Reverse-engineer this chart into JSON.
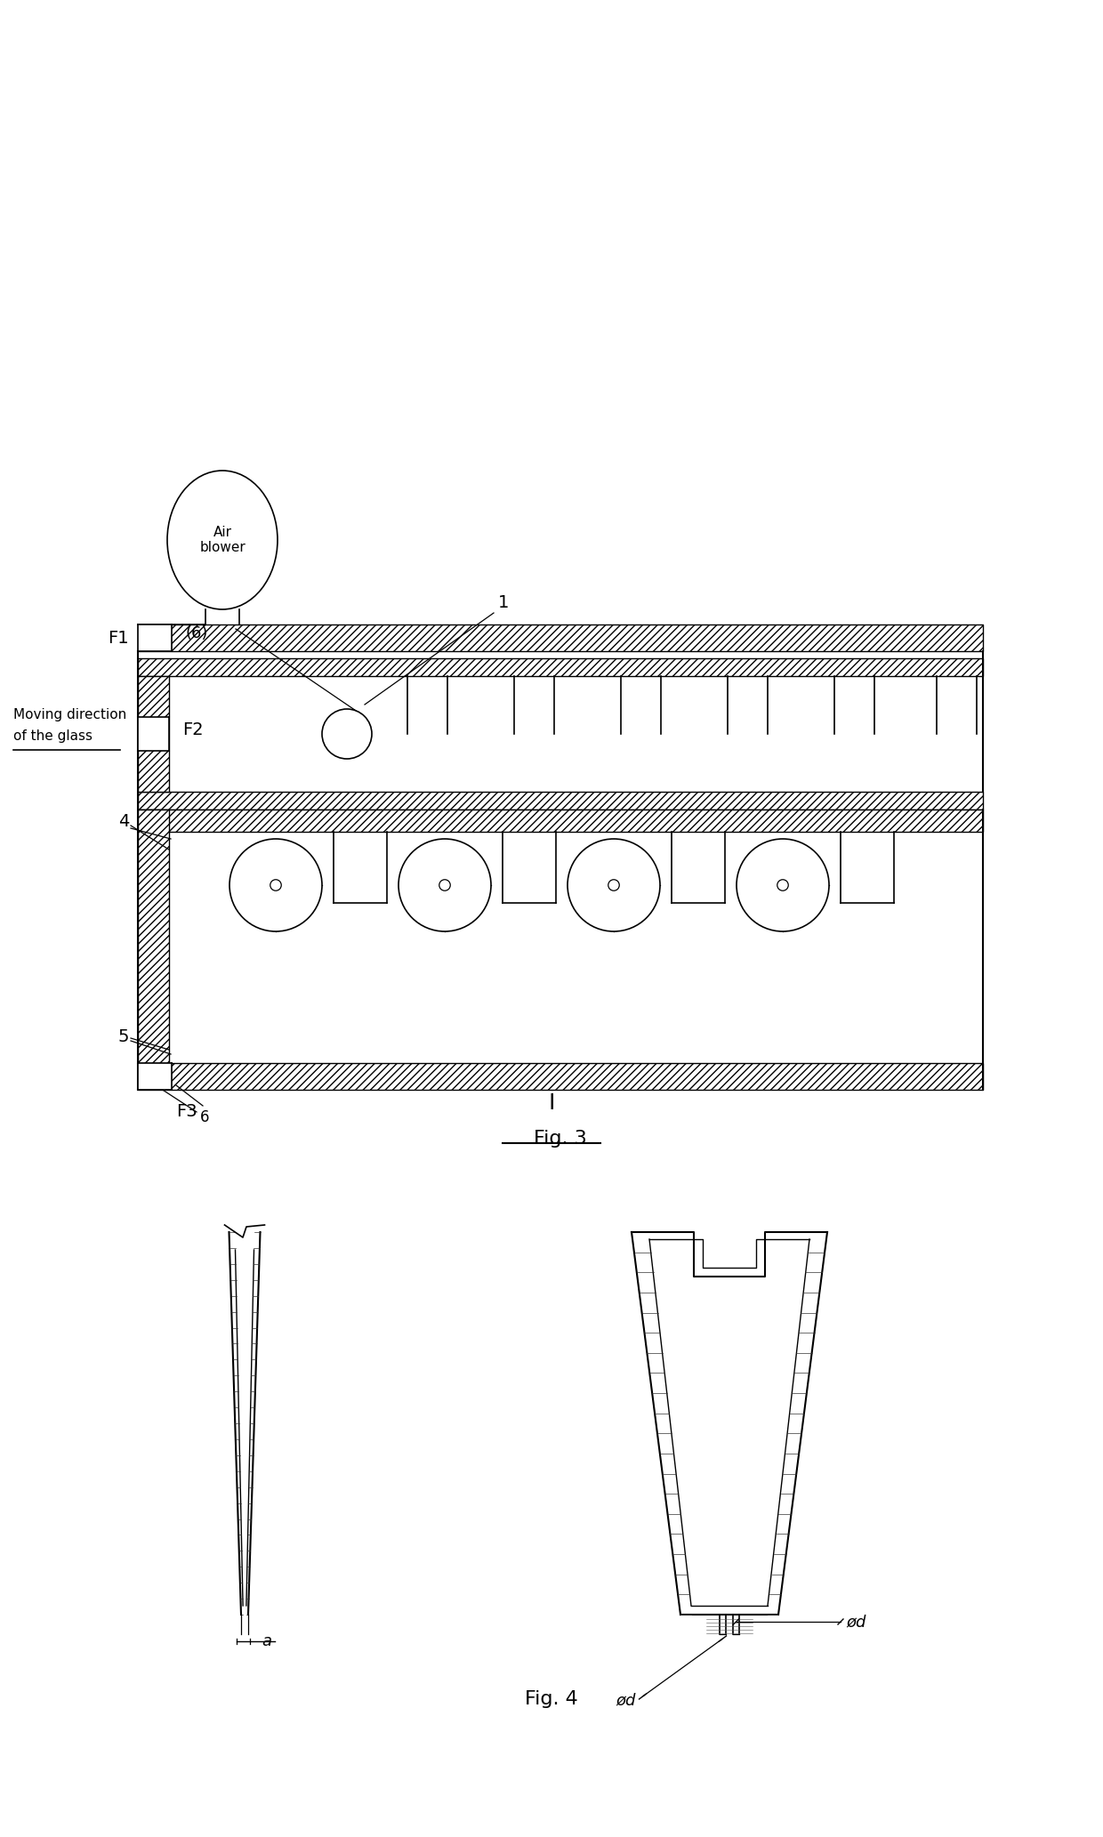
{
  "bg_color": "#ffffff",
  "line_color": "#000000",
  "fig3_title": "Fig. 3",
  "fig4_title": "Fig. 4",
  "separator_label": "I",
  "labels": {
    "air_blower": "Air\nblower",
    "F1": "F1",
    "F2": "F2",
    "F3": "F3",
    "moving_dir_1": "Moving direction",
    "moving_dir_2": "of the glass",
    "label_1": "1",
    "label_4": "4",
    "label_5": "5",
    "label_6_top": "(6)",
    "label_6_bot": "6",
    "dim_a": "a",
    "dim_od1": "ød",
    "dim_od2": "ød"
  }
}
